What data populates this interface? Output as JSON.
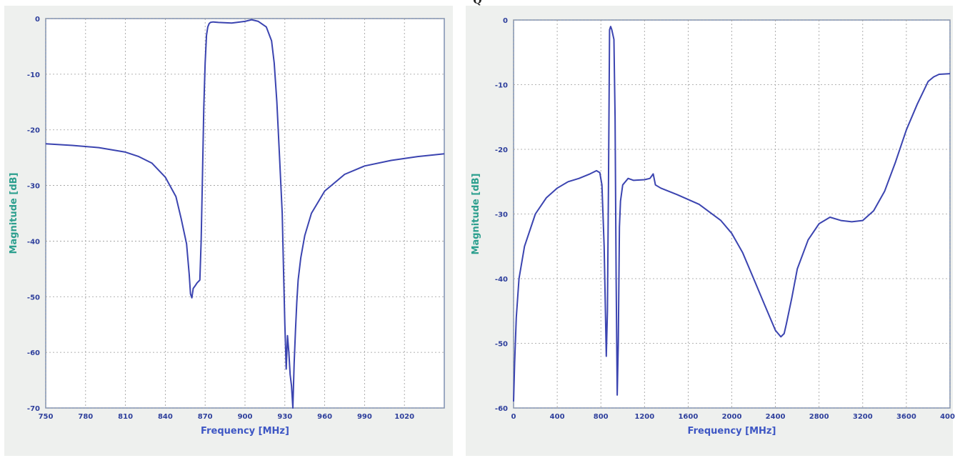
{
  "header": {
    "clipped_text": "Q"
  },
  "chart_data": [
    {
      "type": "line",
      "xlabel": "Frequency [MHz]",
      "ylabel": "Magnitude [dB]",
      "xlim": [
        750,
        1050
      ],
      "ylim": [
        -70,
        0
      ],
      "xticks": [
        750,
        780,
        810,
        840,
        870,
        900,
        930,
        960,
        990,
        1020
      ],
      "xtick_labels": [
        "750",
        "780",
        "810",
        "840",
        "870",
        "900",
        "930",
        "960",
        "990",
        "1020"
      ],
      "yticks": [
        0,
        -10,
        -20,
        -30,
        -40,
        -50,
        -60,
        -70
      ],
      "ytick_labels": [
        "0",
        "-10",
        "-20",
        "-30",
        "-40",
        "-50",
        "-60",
        "-70"
      ],
      "grid": true,
      "series": [
        {
          "color": "#3b44b0",
          "x": [
            750,
            770,
            790,
            810,
            820,
            830,
            840,
            848,
            852,
            856,
            858,
            859,
            860,
            861,
            862,
            864,
            866,
            867,
            868,
            869,
            870,
            871,
            872,
            873,
            874,
            876,
            880,
            890,
            900,
            905,
            910,
            916,
            920,
            922,
            924,
            926,
            928,
            929,
            930,
            931,
            932,
            933,
            934,
            935,
            936,
            937,
            938,
            939,
            940,
            942,
            945,
            950,
            960,
            975,
            990,
            1010,
            1030,
            1050
          ],
          "y": [
            -22.5,
            -22.8,
            -23.2,
            -24.0,
            -24.8,
            -26.0,
            -28.5,
            -32.0,
            -36.0,
            -40.5,
            -46.0,
            -49.5,
            -50.2,
            -48.5,
            -48.2,
            -47.5,
            -47.0,
            -40.0,
            -28.0,
            -16.0,
            -8.0,
            -3.0,
            -1.5,
            -0.9,
            -0.7,
            -0.6,
            -0.7,
            -0.8,
            -0.5,
            -0.2,
            -0.5,
            -1.5,
            -4.0,
            -8.0,
            -15.0,
            -25.0,
            -35.0,
            -45.0,
            -55.0,
            -63.0,
            -57.0,
            -60.0,
            -64.0,
            -66.0,
            -70.0,
            -62.0,
            -56.0,
            -51.0,
            -47.0,
            -43.0,
            -39.0,
            -35.0,
            -31.0,
            -28.0,
            -26.5,
            -25.5,
            -24.8,
            -24.3
          ]
        }
      ]
    },
    {
      "type": "line",
      "xlabel": "Frequency [MHz]",
      "ylabel": "Magnitude [dB]",
      "xlim": [
        0,
        4000
      ],
      "ylim": [
        -60,
        0
      ],
      "xticks": [
        0,
        400,
        800,
        1200,
        1600,
        2000,
        2400,
        2800,
        3200,
        3600,
        4000
      ],
      "xtick_labels": [
        "0",
        "400",
        "800",
        "1200",
        "1600",
        "2000",
        "2400",
        "2800",
        "3200",
        "3600",
        "4000"
      ],
      "yticks": [
        0,
        -10,
        -20,
        -30,
        -40,
        -50,
        -60
      ],
      "ytick_labels": [
        "0",
        "-10",
        "-20",
        "-30",
        "-40",
        "-50",
        "-60"
      ],
      "grid": true,
      "series": [
        {
          "color": "#3b44b0",
          "x": [
            0,
            10,
            25,
            50,
            100,
            200,
            300,
            400,
            500,
            600,
            700,
            760,
            790,
            810,
            830,
            850,
            860,
            870,
            880,
            890,
            900,
            920,
            930,
            940,
            950,
            960,
            970,
            980,
            1000,
            1050,
            1100,
            1200,
            1250,
            1280,
            1300,
            1350,
            1500,
            1700,
            1900,
            2000,
            2100,
            2200,
            2300,
            2400,
            2450,
            2480,
            2500,
            2550,
            2600,
            2700,
            2800,
            2900,
            3000,
            3100,
            3200,
            3300,
            3400,
            3500,
            3600,
            3700,
            3800,
            3850,
            3900,
            4000
          ],
          "y": [
            -59.0,
            -53.0,
            -46.0,
            -40.0,
            -35.0,
            -30.0,
            -27.5,
            -26.0,
            -25.0,
            -24.5,
            -23.8,
            -23.3,
            -23.6,
            -25.5,
            -35.0,
            -52.0,
            -45.0,
            -25.0,
            -1.5,
            -1.0,
            -1.5,
            -3.0,
            -15.0,
            -40.0,
            -58.0,
            -50.0,
            -32.0,
            -28.0,
            -25.5,
            -24.5,
            -24.8,
            -24.7,
            -24.5,
            -23.8,
            -25.5,
            -26.0,
            -27.0,
            -28.5,
            -31.0,
            -33.0,
            -36.0,
            -40.0,
            -44.0,
            -48.0,
            -49.0,
            -48.5,
            -47.0,
            -43.0,
            -38.5,
            -34.0,
            -31.5,
            -30.5,
            -31.0,
            -31.2,
            -31.0,
            -29.5,
            -26.5,
            -22.0,
            -17.0,
            -13.0,
            -9.5,
            -8.8,
            -8.4,
            -8.3
          ]
        }
      ]
    }
  ]
}
